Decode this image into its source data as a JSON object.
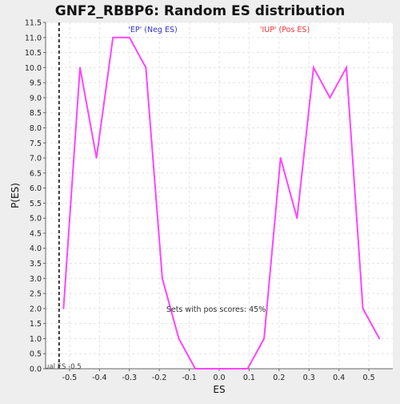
{
  "chart_data": {
    "type": "line",
    "title": "GNF2_RBBP6: Random ES distribution",
    "xlabel": "ES",
    "ylabel": "P(ES)",
    "xlim": [
      -0.58,
      0.58
    ],
    "ylim": [
      0.0,
      11.5
    ],
    "x_ticks": [
      "-0.5",
      "-0.4",
      "-0.3",
      "-0.2",
      "-0.1",
      "0.0",
      "0.1",
      "0.2",
      "0.3",
      "0.4",
      "0.5"
    ],
    "x_tick_values": [
      -0.5,
      -0.4,
      -0.3,
      -0.2,
      -0.1,
      0.0,
      0.1,
      0.2,
      0.3,
      0.4,
      0.5
    ],
    "y_ticks": [
      "0.0",
      "0.5",
      "1.0",
      "1.5",
      "2.0",
      "2.5",
      "3.0",
      "3.5",
      "4.0",
      "4.5",
      "5.0",
      "5.5",
      "6.0",
      "6.5",
      "7.0",
      "7.5",
      "8.0",
      "8.5",
      "9.0",
      "9.5",
      "10.0",
      "10.5",
      "11.0",
      "11.5"
    ],
    "y_tick_values": [
      0.0,
      0.5,
      1.0,
      1.5,
      2.0,
      2.5,
      3.0,
      3.5,
      4.0,
      4.5,
      5.0,
      5.5,
      6.0,
      6.5,
      7.0,
      7.5,
      8.0,
      8.5,
      9.0,
      9.5,
      10.0,
      10.5,
      11.0,
      11.5
    ],
    "grid": true,
    "series": [
      {
        "color": "#ff44ff",
        "x": [
          -0.52,
          -0.465,
          -0.41,
          -0.355,
          -0.3,
          -0.245,
          -0.19,
          -0.135,
          -0.08,
          -0.025,
          0.035,
          0.095,
          0.15,
          0.205,
          0.26,
          0.315,
          0.37,
          0.425,
          0.48,
          0.535
        ],
        "y": [
          2.0,
          10.0,
          7.0,
          11.0,
          11.0,
          10.0,
          3.0,
          1.0,
          0.0,
          0.0,
          0.0,
          0.0,
          1.0,
          7.0,
          5.0,
          10.0,
          9.0,
          10.0,
          2.0,
          1.0
        ]
      }
    ],
    "annotations": {
      "neg_label": "'EP' (Neg ES)",
      "neg_color": "#3333cc",
      "pos_label": "'IUP' (Pos ES)",
      "pos_color": "#ee3333",
      "pos_scores": "Sets with pos scores: 45%",
      "actual_es_label": "ual ES -0.5",
      "actual_es_value": -0.535
    }
  }
}
